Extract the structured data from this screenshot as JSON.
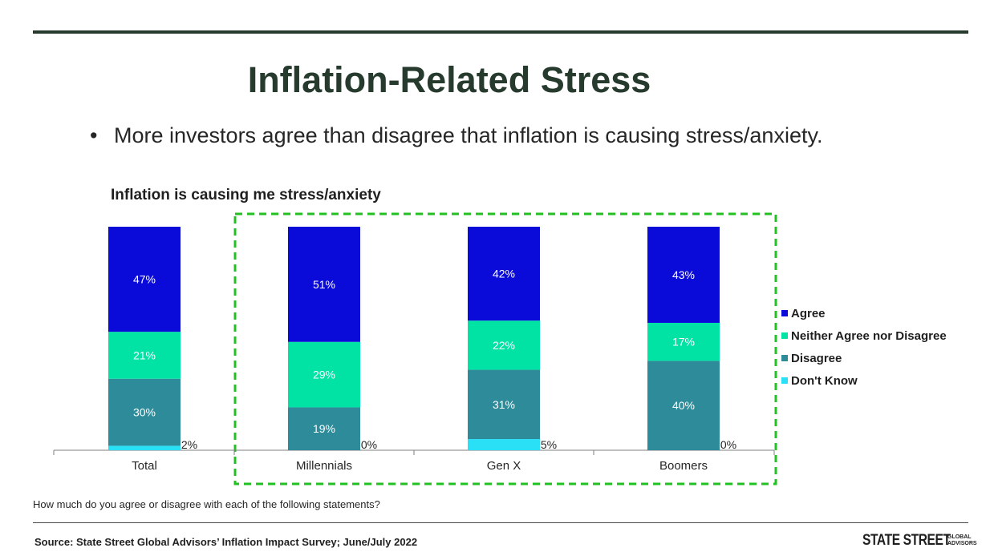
{
  "slide": {
    "title": "Inflation-Related Stress",
    "bullet": "More investors agree than disagree that inflation is causing stress/anxiety.",
    "bullet_marker": "•",
    "question": "How much do you agree or disagree with each of the following statements?",
    "source": "Source: State Street Global Advisors’ Inflation Impact Survey; June/July 2022",
    "logo": {
      "main": "STATE STREET",
      "sub_1": "GLOBAL",
      "sub_2": "ADVISORS"
    }
  },
  "chart_data": {
    "type": "bar",
    "stacked": true,
    "title": "Inflation is causing me stress/anxiety",
    "xlabel": "",
    "ylabel": "",
    "categories": [
      "Total",
      "Millennials",
      "Gen X",
      "Boomers"
    ],
    "series": [
      {
        "name": "Agree",
        "color": "#0a0ad9",
        "values": [
          47,
          51,
          42,
          43
        ]
      },
      {
        "name": "Neither Agree nor Disagree",
        "color": "#00e3a4",
        "values": [
          21,
          29,
          22,
          17
        ]
      },
      {
        "name": "Disagree",
        "color": "#2e8b99",
        "values": [
          30,
          19,
          31,
          40
        ]
      },
      {
        "name": "Don't Know",
        "color": "#2ae0f7",
        "values": [
          2,
          0,
          5,
          0
        ]
      }
    ],
    "value_suffix": "%",
    "legend_position": "right",
    "grid": false,
    "highlight": {
      "categories": [
        "Millennials",
        "Gen X",
        "Boomers"
      ],
      "style": "dashed-box",
      "color": "#22c022"
    }
  }
}
